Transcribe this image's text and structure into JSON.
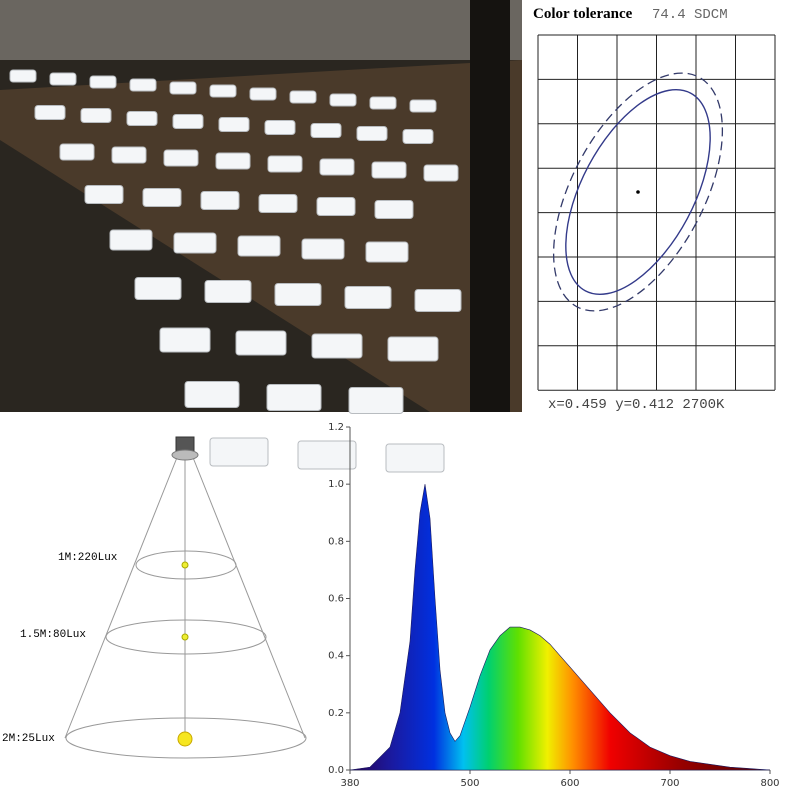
{
  "color_tolerance": {
    "title": "Color tolerance",
    "sdcm": "74.4 SDCM",
    "coordinates": "x=0.459 y=0.412 2700K"
  },
  "light_cone": {
    "levels": [
      "1M:220Lux",
      "1.5M:80Lux",
      "2M:25Lux"
    ]
  },
  "chart_data": {
    "type": "area",
    "x": [
      380,
      400,
      420,
      430,
      440,
      445,
      450,
      455,
      460,
      465,
      470,
      475,
      480,
      485,
      490,
      500,
      510,
      520,
      530,
      540,
      550,
      560,
      570,
      580,
      590,
      600,
      620,
      640,
      660,
      680,
      700,
      720,
      740,
      760,
      780,
      800
    ],
    "values": [
      0,
      0.01,
      0.08,
      0.2,
      0.45,
      0.7,
      0.9,
      1.0,
      0.88,
      0.6,
      0.35,
      0.2,
      0.13,
      0.1,
      0.12,
      0.22,
      0.33,
      0.42,
      0.47,
      0.5,
      0.5,
      0.49,
      0.47,
      0.44,
      0.4,
      0.36,
      0.28,
      0.2,
      0.13,
      0.08,
      0.05,
      0.03,
      0.02,
      0.01,
      0.005,
      0
    ],
    "xlim": [
      380,
      800
    ],
    "ylim": [
      0,
      1.2
    ],
    "xticks": [
      380,
      500,
      600,
      700,
      800
    ],
    "yticks": [
      {
        "value": 0,
        "label": "0.0"
      },
      {
        "value": 0.2,
        "label": "0.2"
      },
      {
        "value": 0.4,
        "label": "0.4"
      },
      {
        "value": 0.6,
        "label": "0.6"
      },
      {
        "value": 0.8,
        "label": "0.8"
      },
      {
        "value": 1.0,
        "label": "1.0"
      },
      {
        "value": 1.2,
        "label": "1.2"
      }
    ]
  }
}
